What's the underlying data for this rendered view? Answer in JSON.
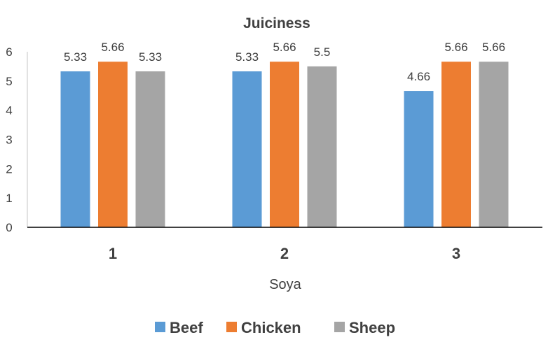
{
  "chart_data": {
    "type": "bar",
    "title": "Juiciness",
    "xlabel": "Soya",
    "ylabel": "",
    "categories": [
      "1",
      "2",
      "3"
    ],
    "series": [
      {
        "name": "Beef",
        "color": "#5b9bd5",
        "values": [
          5.33,
          5.33,
          4.66
        ],
        "labels": [
          "5.33",
          "5.33",
          "4.66"
        ]
      },
      {
        "name": "Chicken",
        "color": "#ed7d31",
        "values": [
          5.66,
          5.66,
          5.66
        ],
        "labels": [
          "5.66",
          "5.66",
          "5.66"
        ]
      },
      {
        "name": "Sheep",
        "color": "#a5a5a5",
        "values": [
          5.33,
          5.5,
          5.66
        ],
        "labels": [
          "5.33",
          "5.5",
          "5.66"
        ]
      }
    ],
    "ylim": [
      0,
      6
    ],
    "yticks": [
      "0",
      "1",
      "2",
      "3",
      "4",
      "5",
      "6"
    ],
    "grid": false,
    "legend_position": "bottom"
  }
}
